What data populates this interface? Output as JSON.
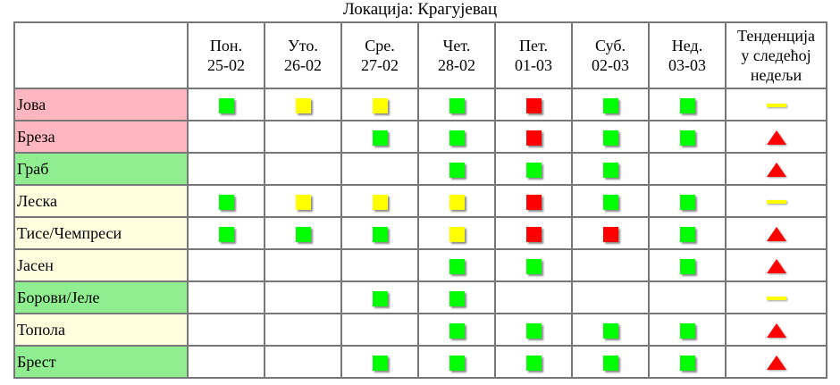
{
  "title": "Локација: Крагујевац",
  "colors": {
    "G": "#00ff00",
    "Y": "#ffff00",
    "R": "#ff0000",
    "pink": "#ffb6c1",
    "green": "#90ee90",
    "yellow": "#ffffe0"
  },
  "days": [
    {
      "name": "Пон.",
      "date": "25-02"
    },
    {
      "name": "Уто.",
      "date": "26-02"
    },
    {
      "name": "Сре.",
      "date": "27-02"
    },
    {
      "name": "Чет.",
      "date": "28-02"
    },
    {
      "name": "Пет.",
      "date": "01-03"
    },
    {
      "name": "Суб.",
      "date": "02-03"
    },
    {
      "name": "Нед.",
      "date": "03-03"
    }
  ],
  "trend_header": [
    "Тенденција",
    "у следећој",
    "недељи"
  ],
  "rows": [
    {
      "name": "Јова",
      "bg": "pink",
      "levels": [
        "G",
        "Y",
        "Y",
        "G",
        "R",
        "G",
        "G"
      ],
      "trend": "steady"
    },
    {
      "name": "Бреза",
      "bg": "pink",
      "levels": [
        "",
        "",
        "G",
        "G",
        "R",
        "G",
        "G"
      ],
      "trend": "up"
    },
    {
      "name": "Граб",
      "bg": "green",
      "levels": [
        "",
        "",
        "",
        "G",
        "G",
        "G",
        ""
      ],
      "trend": "up"
    },
    {
      "name": "Леска",
      "bg": "yellow",
      "levels": [
        "G",
        "Y",
        "Y",
        "Y",
        "R",
        "G",
        "G"
      ],
      "trend": "steady"
    },
    {
      "name": "Тисе/Чемпреси",
      "bg": "yellow",
      "levels": [
        "G",
        "G",
        "G",
        "Y",
        "R",
        "R",
        "G"
      ],
      "trend": "up"
    },
    {
      "name": "Јасен",
      "bg": "yellow",
      "levels": [
        "",
        "",
        "",
        "G",
        "G",
        "",
        "G"
      ],
      "trend": "up"
    },
    {
      "name": "Борови/Јеле",
      "bg": "green",
      "levels": [
        "",
        "",
        "G",
        "G",
        "",
        "",
        ""
      ],
      "trend": "steady"
    },
    {
      "name": "Топола",
      "bg": "yellow",
      "levels": [
        "",
        "",
        "",
        "G",
        "G",
        "G",
        "G"
      ],
      "trend": "up"
    },
    {
      "name": "Брест",
      "bg": "green",
      "levels": [
        "",
        "",
        "G",
        "G",
        "G",
        "G",
        "G"
      ],
      "trend": "up"
    }
  ]
}
